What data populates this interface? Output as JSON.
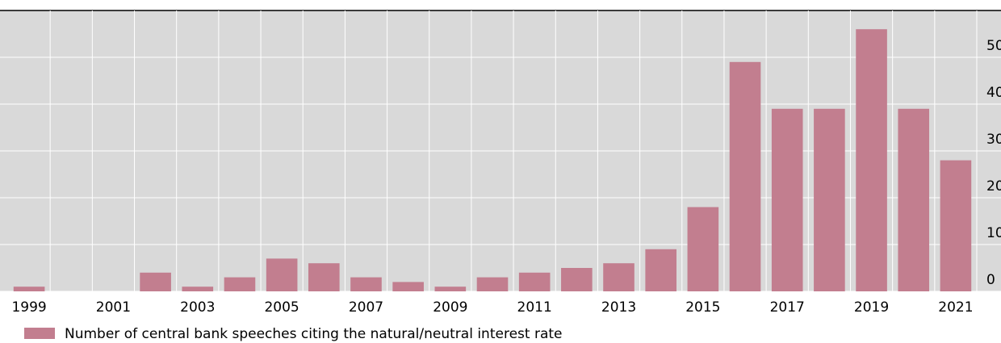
{
  "chart_data": {
    "type": "bar",
    "categories": [
      "1999",
      null,
      "2001",
      null,
      "2003",
      null,
      "2005",
      null,
      "2007",
      null,
      "2009",
      null,
      "2011",
      null,
      "2013",
      null,
      "2015",
      null,
      "2017",
      null,
      "2019",
      null,
      "2021"
    ],
    "series": [
      {
        "name": "Number of central bank speeches citing the natural/neutral interest rate",
        "color": "#c27e8f",
        "values": [
          1,
          0,
          0,
          4,
          1,
          3,
          7,
          6,
          3,
          2,
          1,
          3,
          4,
          5,
          6,
          9,
          18,
          49,
          39,
          39,
          56,
          39,
          28
        ]
      }
    ],
    "ylim": [
      0,
      60
    ],
    "yticks": [
      0,
      10,
      20,
      30,
      40,
      50
    ],
    "grid": true
  }
}
